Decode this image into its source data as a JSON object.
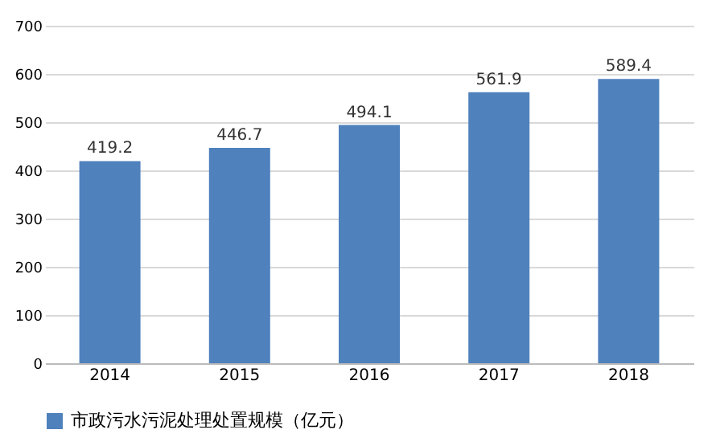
{
  "chart_data": {
    "type": "bar",
    "categories": [
      "2014",
      "2015",
      "2016",
      "2017",
      "2018"
    ],
    "series": [
      {
        "name": "市政污水污泥处理处置规模（亿元）",
        "color": "#4f81bd",
        "values": [
          419.2,
          446.7,
          494.1,
          561.9,
          589.4
        ]
      }
    ],
    "ylim": [
      0,
      700
    ],
    "yticks": [
      0,
      100,
      200,
      300,
      400,
      500,
      600,
      700
    ],
    "grid": "y",
    "legend": "bottom",
    "data_labels": true
  }
}
